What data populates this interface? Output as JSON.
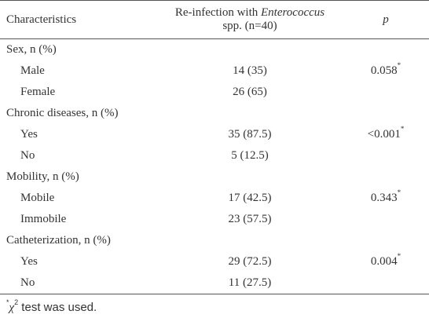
{
  "header": {
    "characteristics": "Characteristics",
    "reinfection_prefix": "Re-infection with ",
    "reinfection_genus": "Enterococcus",
    "reinfection_suffix": "spp. (n=40)",
    "p": "p"
  },
  "rows": {
    "sex": {
      "label": "Sex, n (%)"
    },
    "male": {
      "label": "Male",
      "value": "14 (35)",
      "p": "0.058",
      "p_mark": "*"
    },
    "female": {
      "label": "Female",
      "value": "26 (65)"
    },
    "chronic": {
      "label": "Chronic diseases, n (%)"
    },
    "chronic_yes": {
      "label": "Yes",
      "value": "35 (87.5)",
      "p": "<0.001",
      "p_mark": "*"
    },
    "chronic_no": {
      "label": "No",
      "value": "5 (12.5)"
    },
    "mobility": {
      "label": "Mobility, n (%)"
    },
    "mobile": {
      "label": "Mobile",
      "value": "17 (42.5)",
      "p": "0.343",
      "p_mark": "*"
    },
    "immobile": {
      "label": "Immobile",
      "value": "23 (57.5)"
    },
    "cath": {
      "label": "Catheterization, n (%)"
    },
    "cath_yes": {
      "label": "Yes",
      "value": "29 (72.5)",
      "p": "0.004",
      "p_mark": "*"
    },
    "cath_no": {
      "label": "No",
      "value": "11 (27.5)"
    }
  },
  "footnote": {
    "mark": "*",
    "chi": "χ",
    "sup": "2",
    "text": " test was used."
  }
}
